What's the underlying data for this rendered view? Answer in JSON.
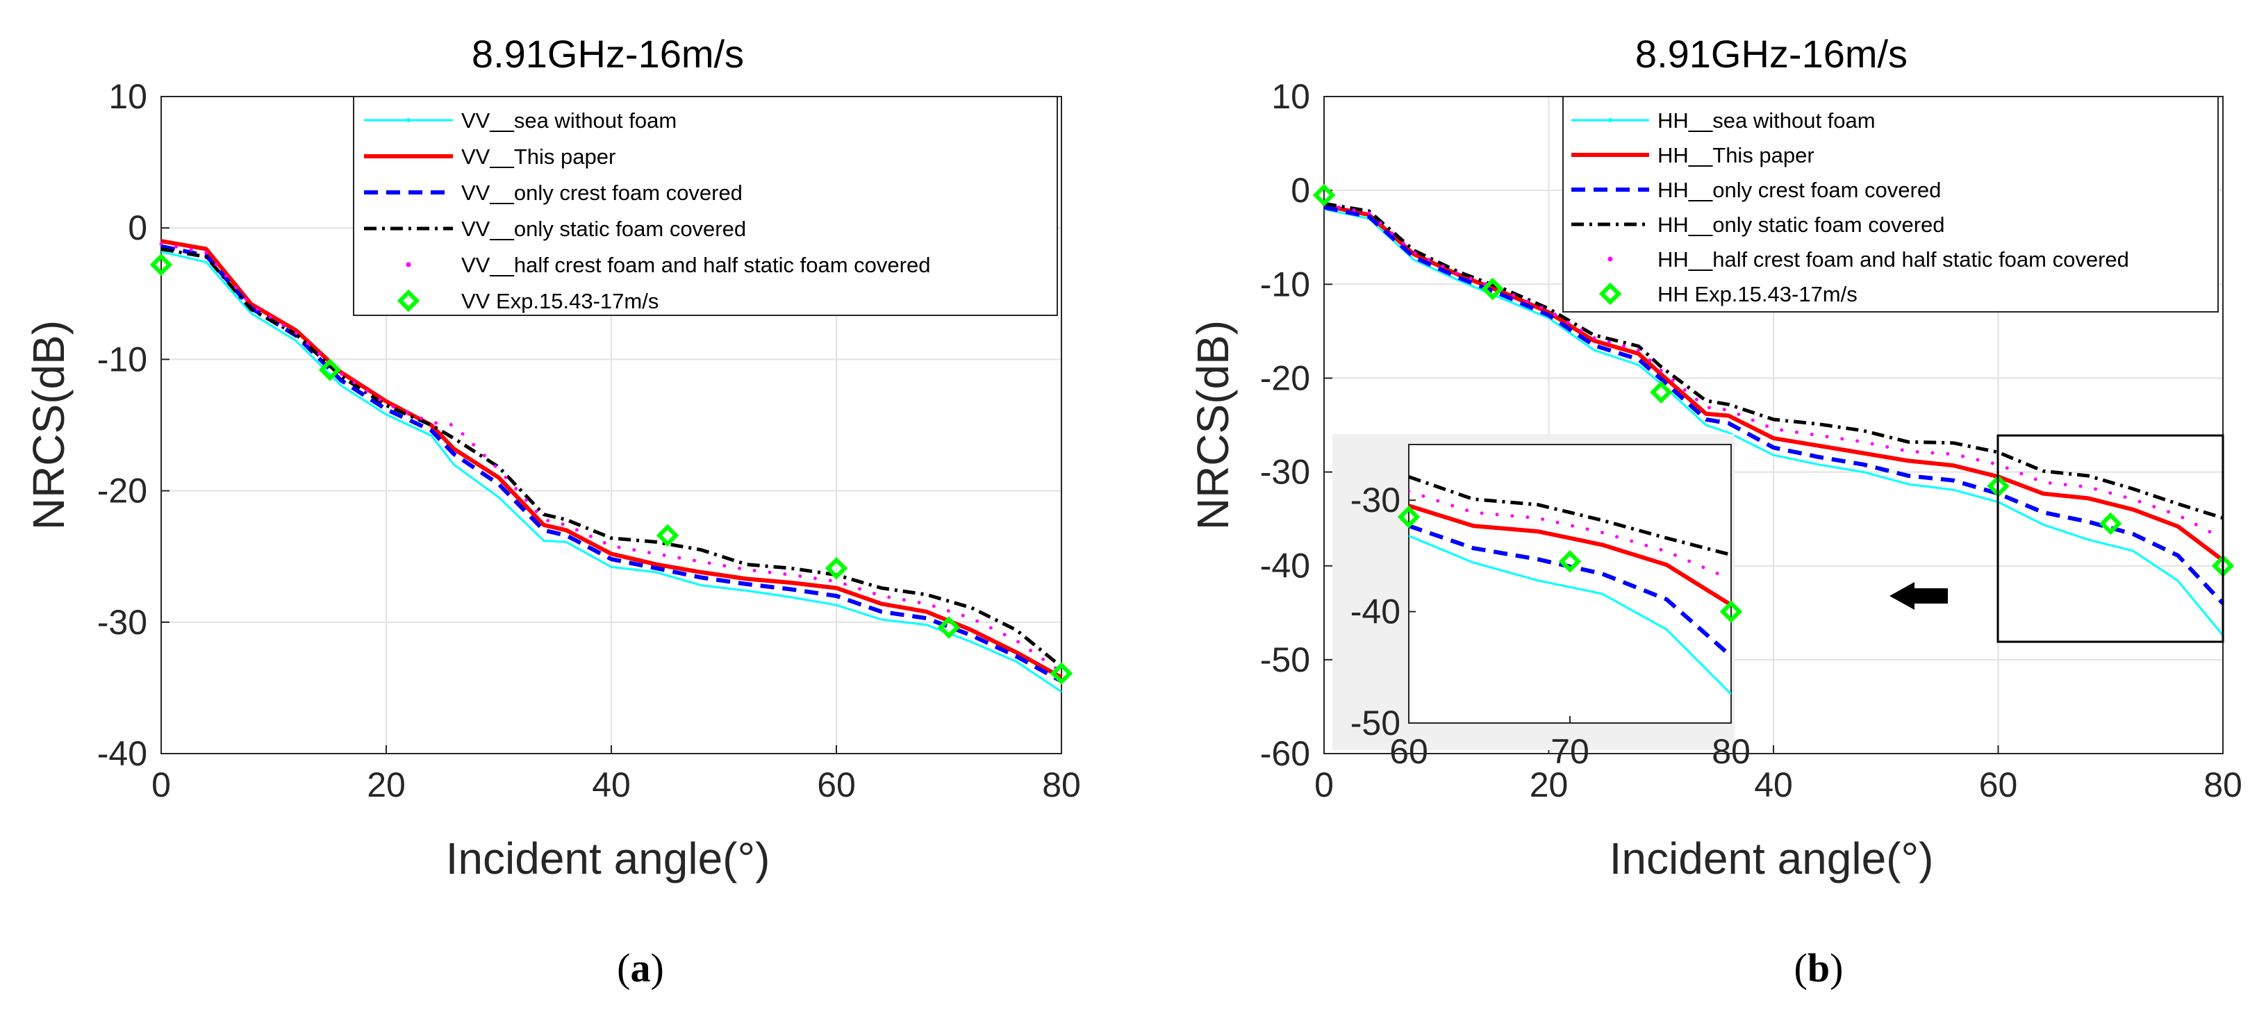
{
  "colors": {
    "sea_without_foam": "#00ffff",
    "this_paper": "#ff0000",
    "only_crest": "#0000ff",
    "only_static": "#000000",
    "half_half": "#ff00ff",
    "experiment": "#00ff00"
  },
  "chart_data": [
    {
      "type": "line",
      "panel": "a",
      "caption_letter": "a",
      "title": "8.91GHz-16m/s",
      "xlabel": "Incident angle(°)",
      "ylabel": "NRCS(dB)",
      "xlim": [
        0,
        80
      ],
      "ylim": [
        -40,
        10
      ],
      "xticks": [
        "0",
        "20",
        "40",
        "60",
        "80"
      ],
      "yticks": [
        "10",
        "0",
        "-10",
        "-20",
        "-30",
        "-40"
      ],
      "grid": true,
      "legend_position": "top-right",
      "x": [
        0,
        4,
        8,
        12,
        16,
        20,
        24,
        26,
        30,
        34,
        36,
        40,
        44,
        48,
        52,
        56,
        60,
        64,
        68,
        72,
        76,
        80
      ],
      "series": [
        {
          "key": "sea_without_foam",
          "name": "VV__sea without foam",
          "style": "solid-thin",
          "values": [
            -1.8,
            -2.6,
            -6.5,
            -8.6,
            -12.0,
            -14.2,
            -15.8,
            -18.0,
            -20.5,
            -23.8,
            -23.9,
            -25.8,
            -26.2,
            -27.2,
            -27.6,
            -28.1,
            -28.7,
            -29.8,
            -30.2,
            -31.5,
            -33.0,
            -35.3
          ]
        },
        {
          "key": "this_paper",
          "name": "VV__This paper",
          "style": "solid-thick",
          "values": [
            -1.0,
            -1.6,
            -5.8,
            -7.8,
            -11.0,
            -13.2,
            -15.0,
            -16.8,
            -19.0,
            -22.6,
            -23.0,
            -24.8,
            -25.6,
            -26.2,
            -26.7,
            -27.0,
            -27.4,
            -28.6,
            -29.2,
            -30.6,
            -32.3,
            -34.2
          ]
        },
        {
          "key": "only_crest",
          "name": "VV__only crest foam covered",
          "style": "dashed",
          "values": [
            -1.4,
            -2.1,
            -6.1,
            -8.2,
            -11.6,
            -13.8,
            -15.4,
            -17.2,
            -19.5,
            -23.0,
            -23.4,
            -25.2,
            -25.9,
            -26.6,
            -27.1,
            -27.5,
            -28.0,
            -29.2,
            -29.7,
            -31.0,
            -32.6,
            -34.5
          ]
        },
        {
          "key": "only_static",
          "name": "VV__only static foam covered",
          "style": "dashdot",
          "values": [
            -1.6,
            -2.2,
            -6.2,
            -8.1,
            -11.3,
            -13.5,
            -15.0,
            -16.0,
            -18.2,
            -21.8,
            -22.2,
            -23.6,
            -23.9,
            -24.5,
            -25.6,
            -25.9,
            -26.4,
            -27.4,
            -27.9,
            -28.9,
            -30.6,
            -33.4
          ]
        },
        {
          "key": "half_half",
          "name": "VV__half crest foam and half static foam covered",
          "style": "dotted",
          "values": [
            -1.2,
            -1.9,
            -5.9,
            -8.0,
            -11.1,
            -13.4,
            -14.8,
            -15.0,
            -18.4,
            -22.2,
            -22.6,
            -24.2,
            -24.8,
            -25.4,
            -26.0,
            -26.4,
            -26.9,
            -28.0,
            -28.6,
            -29.7,
            -31.4,
            -33.8
          ]
        }
      ],
      "experiment": {
        "key": "experiment",
        "name": "VV Exp.15.43-17m/s",
        "x": [
          0,
          15,
          45,
          60,
          70,
          80
        ],
        "values": [
          -2.8,
          -10.8,
          -23.4,
          -25.9,
          -30.4,
          -33.9
        ]
      }
    },
    {
      "type": "line",
      "panel": "b",
      "caption_letter": "b",
      "title": "8.91GHz-16m/s",
      "xlabel": "Incident angle(°)",
      "ylabel": "NRCS(dB)",
      "xlim": [
        0,
        80
      ],
      "ylim": [
        -60,
        10
      ],
      "xticks": [
        "0",
        "20",
        "40",
        "60",
        "80"
      ],
      "yticks": [
        "10",
        "0",
        "-10",
        "-20",
        "-30",
        "-40",
        "-50",
        "-60"
      ],
      "grid": true,
      "legend_position": "top-right",
      "x": [
        0,
        4,
        8,
        12,
        16,
        20,
        24,
        28,
        30,
        34,
        36,
        40,
        44,
        48,
        52,
        56,
        60,
        64,
        68,
        72,
        76,
        80
      ],
      "series": [
        {
          "key": "sea_without_foam",
          "name": "HH__sea without foam",
          "style": "solid-thin",
          "values": [
            -2.0,
            -3.0,
            -7.4,
            -9.6,
            -11.6,
            -13.6,
            -17.0,
            -18.6,
            -20.6,
            -25.0,
            -25.8,
            -28.2,
            -29.2,
            -30.0,
            -31.3,
            -31.9,
            -33.2,
            -35.6,
            -37.2,
            -38.4,
            -41.6,
            -47.4
          ]
        },
        {
          "key": "this_paper",
          "name": "HH__This paper",
          "style": "solid-thick",
          "values": [
            -1.6,
            -2.6,
            -6.8,
            -9.0,
            -10.9,
            -13.0,
            -16.0,
            -17.4,
            -19.6,
            -23.8,
            -24.0,
            -26.4,
            -27.2,
            -28.0,
            -28.8,
            -29.3,
            -30.5,
            -32.3,
            -32.8,
            -34.0,
            -35.8,
            -39.4
          ]
        },
        {
          "key": "only_crest",
          "name": "HH__only crest foam covered",
          "style": "dashed",
          "values": [
            -1.8,
            -2.8,
            -7.1,
            -9.3,
            -11.2,
            -13.3,
            -16.5,
            -18.0,
            -20.1,
            -24.4,
            -24.8,
            -27.4,
            -28.4,
            -29.2,
            -30.4,
            -30.9,
            -32.3,
            -34.3,
            -35.3,
            -36.6,
            -38.9,
            -44.0
          ]
        },
        {
          "key": "only_static",
          "name": "HH__only static foam covered",
          "style": "dashdot",
          "values": [
            -1.4,
            -2.2,
            -6.4,
            -8.7,
            -10.5,
            -12.6,
            -15.4,
            -16.6,
            -18.8,
            -22.4,
            -22.8,
            -24.4,
            -24.9,
            -25.6,
            -26.8,
            -26.9,
            -27.9,
            -29.9,
            -30.4,
            -31.8,
            -33.4,
            -34.9
          ]
        },
        {
          "key": "half_half",
          "name": "HH__half crest foam and half static foam covered",
          "style": "dotted",
          "values": [
            -1.5,
            -2.4,
            -6.6,
            -8.9,
            -10.7,
            -12.8,
            -15.7,
            -17.0,
            -19.2,
            -23.1,
            -23.4,
            -25.4,
            -26.1,
            -26.8,
            -27.8,
            -28.1,
            -29.2,
            -31.1,
            -31.6,
            -32.9,
            -34.6,
            -37.1
          ]
        }
      ],
      "experiment": {
        "key": "experiment",
        "name": "HH Exp.15.43-17m/s",
        "x": [
          0,
          15,
          30,
          60,
          70,
          80
        ],
        "values": [
          -0.5,
          -10.5,
          -21.5,
          -31.5,
          -35.5,
          -40.0
        ]
      },
      "inset": {
        "xlim": [
          60,
          80
        ],
        "ylim": [
          -50,
          -25
        ],
        "xticks": [
          "60",
          "70",
          "80"
        ],
        "yticks": [
          "-30",
          "-40",
          "-50"
        ]
      }
    }
  ]
}
